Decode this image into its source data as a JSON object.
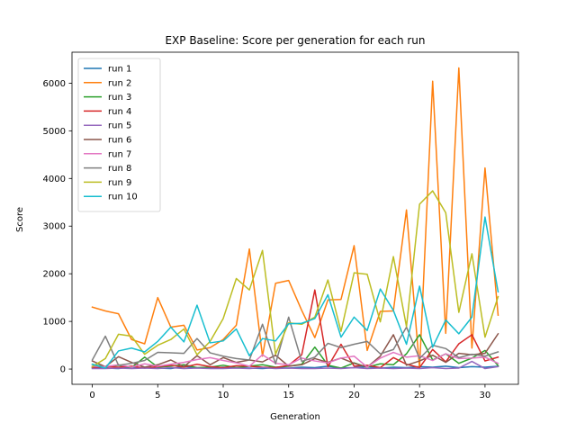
{
  "chart_data": {
    "type": "line",
    "title": "EXP Baseline: Score per generation for each run",
    "xlabel": "Generation",
    "ylabel": "Score",
    "xlim": [
      -1.55,
      32.55
    ],
    "ylim": [
      -320,
      6650
    ],
    "xticks": [
      0,
      5,
      10,
      15,
      20,
      25,
      30
    ],
    "yticks": [
      0,
      1000,
      2000,
      3000,
      4000,
      5000,
      6000
    ],
    "grid": false,
    "legend_position": "top-left",
    "x": [
      0,
      1,
      2,
      3,
      4,
      5,
      6,
      7,
      8,
      9,
      10,
      11,
      12,
      13,
      14,
      15,
      16,
      17,
      18,
      19,
      20,
      21,
      22,
      23,
      24,
      25,
      26,
      27,
      28,
      29,
      30,
      31
    ],
    "series": [
      {
        "name": "run 1",
        "color": "#1f77b4",
        "values": [
          30,
          20,
          10,
          40,
          30,
          20,
          10,
          50,
          30,
          20,
          40,
          30,
          20,
          10,
          30,
          20,
          40,
          30,
          60,
          20,
          30,
          50,
          20,
          40,
          30,
          50,
          40,
          60,
          30,
          50,
          40,
          60
        ]
      },
      {
        "name": "run 2",
        "color": "#ff7f0e",
        "values": [
          1300,
          1220,
          1160,
          620,
          530,
          1500,
          880,
          920,
          400,
          450,
          620,
          920,
          2520,
          270,
          1800,
          1860,
          1230,
          660,
          1450,
          1460,
          2590,
          390,
          1210,
          1220,
          3340,
          20,
          6040,
          750,
          6320,
          440,
          4220,
          1130
        ]
      },
      {
        "name": "run 3",
        "color": "#2ca02c",
        "values": [
          100,
          40,
          80,
          30,
          250,
          40,
          60,
          90,
          30,
          40,
          80,
          30,
          60,
          90,
          40,
          60,
          100,
          460,
          80,
          20,
          130,
          40,
          110,
          90,
          320,
          720,
          190,
          320,
          120,
          230,
          390,
          70
        ]
      },
      {
        "name": "run 4",
        "color": "#d62728",
        "values": [
          30,
          50,
          40,
          60,
          20,
          50,
          80,
          40,
          100,
          50,
          30,
          70,
          60,
          40,
          30,
          80,
          300,
          1660,
          50,
          520,
          60,
          80,
          30,
          240,
          100,
          30,
          410,
          150,
          530,
          720,
          170,
          250
        ]
      },
      {
        "name": "run 5",
        "color": "#9467bd",
        "values": [
          10,
          10,
          20,
          10,
          20,
          10,
          30,
          10,
          20,
          10,
          10,
          20,
          10,
          30,
          10,
          20,
          10,
          10,
          20,
          10,
          30,
          10,
          20,
          10,
          20,
          10,
          30,
          10,
          20,
          160,
          10,
          50
        ]
      },
      {
        "name": "run 6",
        "color": "#8c564b",
        "values": [
          170,
          50,
          260,
          140,
          40,
          90,
          190,
          50,
          280,
          90,
          240,
          140,
          190,
          150,
          290,
          60,
          90,
          220,
          140,
          230,
          120,
          40,
          270,
          720,
          80,
          170,
          290,
          140,
          330,
          300,
          330,
          740
        ]
      },
      {
        "name": "run 7",
        "color": "#e377c2",
        "values": [
          60,
          50,
          90,
          40,
          110,
          60,
          100,
          140,
          200,
          240,
          180,
          130,
          60,
          300,
          120,
          90,
          230,
          170,
          130,
          230,
          270,
          40,
          230,
          350,
          250,
          280,
          180,
          320,
          220,
          230,
          250,
          120
        ]
      },
      {
        "name": "run 8",
        "color": "#7f7f7f",
        "values": [
          190,
          690,
          80,
          120,
          180,
          350,
          340,
          330,
          640,
          340,
          270,
          220,
          190,
          940,
          110,
          1090,
          160,
          250,
          540,
          450,
          520,
          580,
          320,
          410,
          880,
          220,
          500,
          430,
          240,
          310,
          270,
          360
        ]
      },
      {
        "name": "run 9",
        "color": "#bcbd22",
        "values": [
          50,
          220,
          730,
          690,
          310,
          500,
          620,
          840,
          300,
          580,
          1060,
          1900,
          1660,
          2490,
          310,
          970,
          940,
          1090,
          1870,
          790,
          2020,
          1990,
          990,
          2360,
          890,
          3460,
          3740,
          3280,
          1190,
          2420,
          670,
          1520
        ]
      },
      {
        "name": "run 10",
        "color": "#17becf",
        "values": [
          100,
          20,
          380,
          440,
          360,
          580,
          880,
          570,
          1340,
          550,
          590,
          840,
          280,
          640,
          590,
          950,
          960,
          1060,
          1560,
          670,
          1090,
          810,
          1680,
          1230,
          520,
          1740,
          460,
          1030,
          740,
          1090,
          3190,
          1620
        ]
      }
    ]
  }
}
